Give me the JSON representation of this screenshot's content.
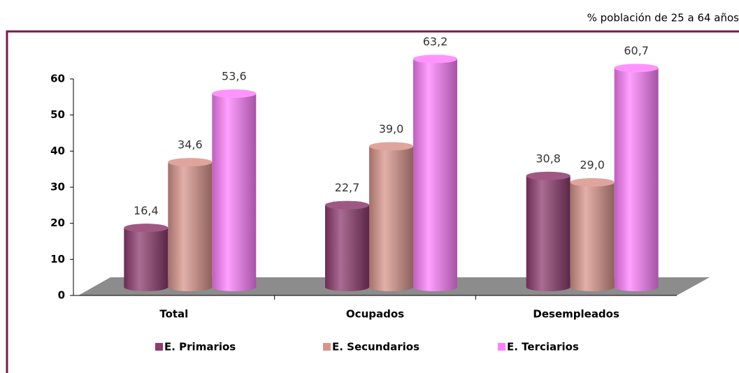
{
  "chart_data": {
    "type": "bar",
    "subtitle": "% población de 25 a 64 años",
    "categories": [
      "Total",
      "Ocupados",
      "Desempleados"
    ],
    "series": [
      {
        "name": "E. Primarios",
        "color": "#8e3b6e",
        "values": [
          16.4,
          22.7,
          30.8
        ],
        "value_labels": [
          "16,4",
          "22,7",
          "30,8"
        ]
      },
      {
        "name": "E. Secundarios",
        "color": "#d9958c",
        "values": [
          34.6,
          39.0,
          29.0
        ],
        "value_labels": [
          "34,6",
          "39,0",
          "29,0"
        ]
      },
      {
        "name": "E. Terciarios",
        "color": "#ff80ff",
        "values": [
          53.6,
          63.2,
          60.7
        ],
        "value_labels": [
          "53,6",
          "63,2",
          "60,7"
        ]
      }
    ],
    "ylim": [
      0,
      60
    ],
    "yticks": [
      0,
      10,
      20,
      30,
      40,
      50,
      60
    ],
    "legend": "bottom"
  }
}
